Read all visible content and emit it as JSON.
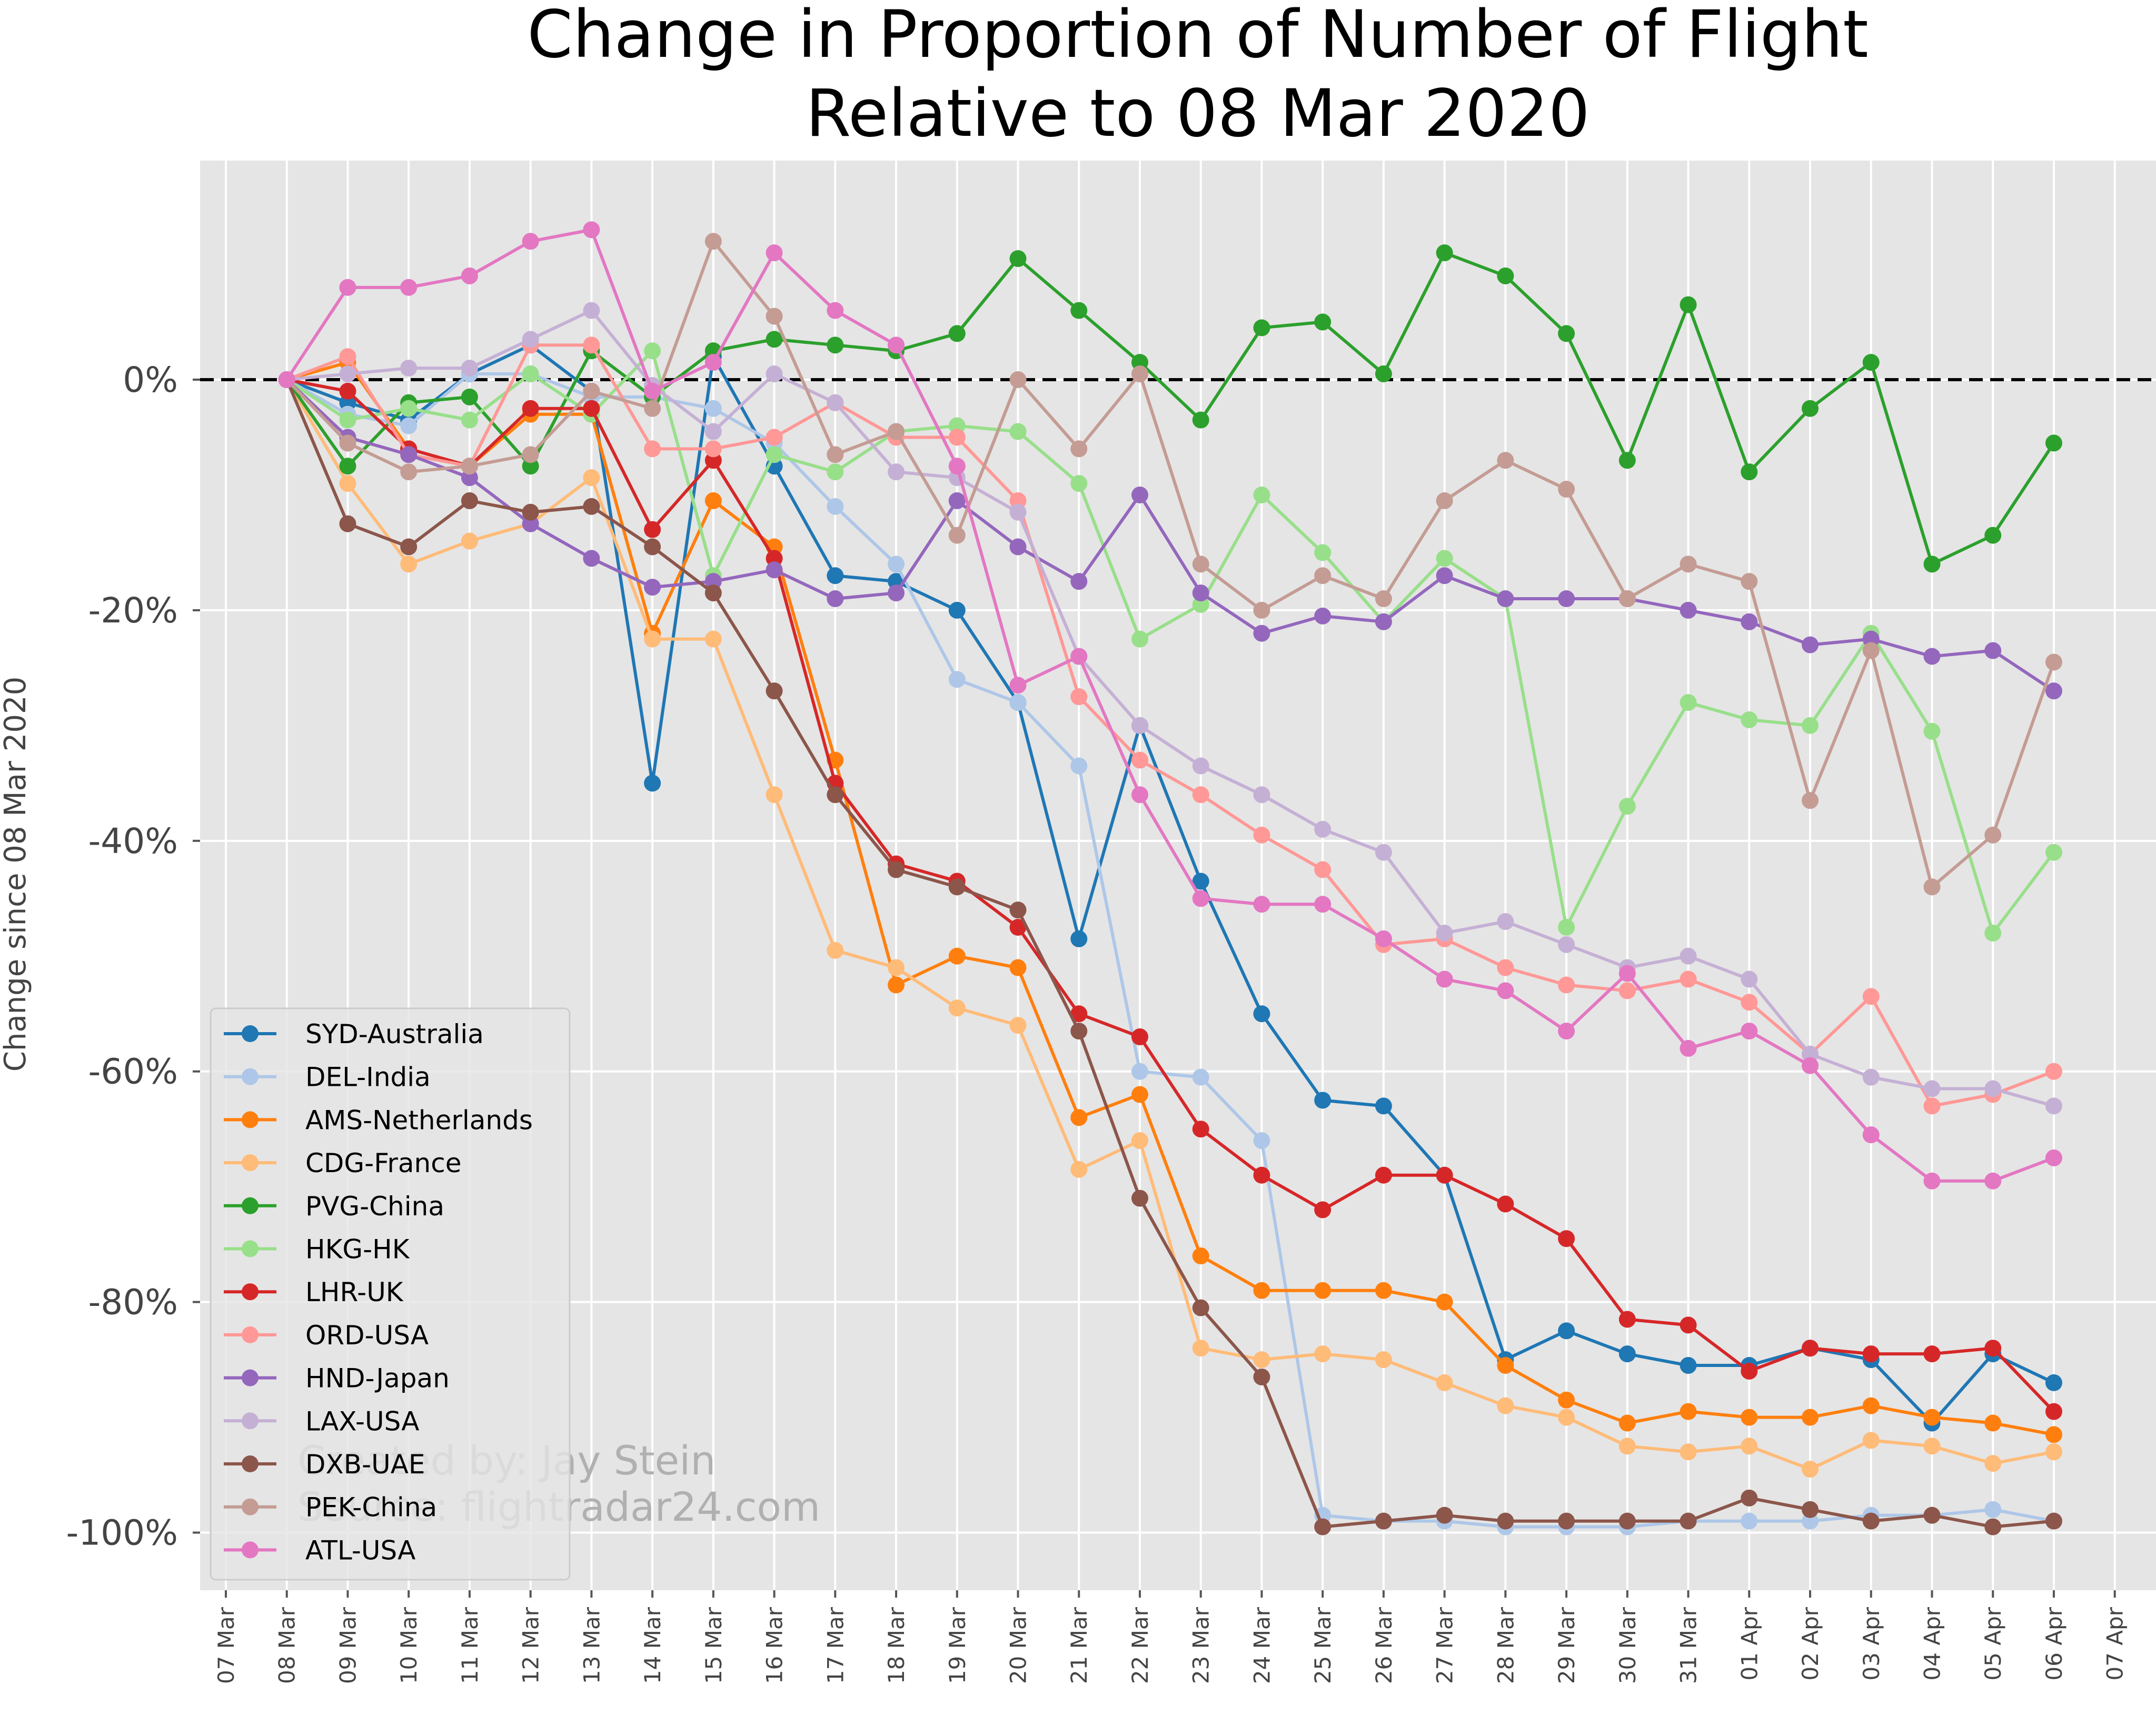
{
  "chart_data": {
    "type": "line",
    "title_line1": "Change in Proportion of Number of Flight",
    "title_line2": "Relative to 08 Mar 2020",
    "ylabel": "Change since 08 Mar 2020",
    "xlabel": "",
    "ylim": [
      -105,
      19
    ],
    "yticks": [
      {
        "value": 0,
        "label": "0%"
      },
      {
        "value": -20,
        "label": "-20%"
      },
      {
        "value": -40,
        "label": "-40%"
      },
      {
        "value": -60,
        "label": "-60%"
      },
      {
        "value": -80,
        "label": "-80%"
      },
      {
        "value": -100,
        "label": "-100%"
      }
    ],
    "x_tick_labels": [
      "07 Mar",
      "08 Mar",
      "09 Mar",
      "10 Mar",
      "11 Mar",
      "12 Mar",
      "13 Mar",
      "14 Mar",
      "15 Mar",
      "16 Mar",
      "17 Mar",
      "18 Mar",
      "19 Mar",
      "20 Mar",
      "21 Mar",
      "22 Mar",
      "23 Mar",
      "24 Mar",
      "25 Mar",
      "26 Mar",
      "27 Mar",
      "28 Mar",
      "29 Mar",
      "30 Mar",
      "31 Mar",
      "01 Apr",
      "02 Apr",
      "03 Apr",
      "04 Apr",
      "05 Apr",
      "06 Apr",
      "07 Apr"
    ],
    "x": [
      "08 Mar",
      "09 Mar",
      "10 Mar",
      "11 Mar",
      "12 Mar",
      "13 Mar",
      "14 Mar",
      "15 Mar",
      "16 Mar",
      "17 Mar",
      "18 Mar",
      "19 Mar",
      "20 Mar",
      "21 Mar",
      "22 Mar",
      "23 Mar",
      "24 Mar",
      "25 Mar",
      "26 Mar",
      "27 Mar",
      "28 Mar",
      "29 Mar",
      "30 Mar",
      "31 Mar",
      "01 Apr",
      "02 Apr",
      "03 Apr",
      "04 Apr",
      "05 Apr",
      "06 Apr"
    ],
    "grid": true,
    "reference_line": 0,
    "legend_position": "lower-left",
    "watermark_line1": "Created by: Jay Stein",
    "watermark_line2": "Source: flightradar24.com",
    "series": [
      {
        "name": "SYD-Australia",
        "color": "#1f77b4",
        "values": [
          0,
          -2,
          -3.5,
          0.5,
          3,
          -1,
          -35,
          2,
          -7.5,
          -17,
          -17.5,
          -20,
          -28,
          -48.5,
          -30,
          -43.5,
          -55,
          -62.5,
          -63,
          -69,
          -85,
          -82.5,
          -84.5,
          -85.5,
          -85.5,
          -84,
          -85,
          -90.5,
          -84.5,
          -87
        ]
      },
      {
        "name": "DEL-India",
        "color": "#aec7e8",
        "values": [
          0,
          -3,
          -4,
          0.5,
          0.5,
          -1.5,
          -1.5,
          -2.5,
          -5.5,
          -11,
          -16,
          -26,
          -28,
          -33.5,
          -60,
          -60.5,
          -66,
          -98.5,
          -99,
          -99,
          -99.5,
          -99.5,
          -99.5,
          -99,
          -99,
          -99,
          -98.5,
          -98.5,
          -98,
          -99
        ]
      },
      {
        "name": "AMS-Netherlands",
        "color": "#ff7f0e",
        "values": [
          0,
          1.5,
          -6,
          -7.5,
          -3,
          -3,
          -22,
          -10.5,
          -14.5,
          -33,
          -52.5,
          -50,
          -51,
          -64,
          -62,
          -76,
          -79,
          -79,
          -79,
          -80,
          -85.5,
          -88.5,
          -90.5,
          -89.5,
          -90,
          -90,
          -89,
          -90,
          -90.5,
          -91.5
        ]
      },
      {
        "name": "CDG-France",
        "color": "#ffbb78",
        "values": [
          0,
          -9,
          -16,
          -14,
          -12.5,
          -8.5,
          -22.5,
          -22.5,
          -36,
          -49.5,
          -51,
          -54.5,
          -56,
          -68.5,
          -66,
          -84,
          -85,
          -84.5,
          -85,
          -87,
          -89,
          -90,
          -92.5,
          -93,
          -92.5,
          -94.5,
          -92,
          -92.5,
          -94,
          -93
        ]
      },
      {
        "name": "PVG-China",
        "color": "#2ca02c",
        "values": [
          0,
          -7.5,
          -2,
          -1.5,
          -7.5,
          2.5,
          -1.5,
          2.5,
          3.5,
          3,
          2.5,
          4,
          10.5,
          6,
          1.5,
          -3.5,
          4.5,
          5,
          0.5,
          11,
          9,
          4,
          -7,
          6.5,
          -8,
          -2.5,
          1.5,
          -16,
          -13.5,
          -5.5
        ]
      },
      {
        "name": "HKG-HK",
        "color": "#98df8a",
        "values": [
          0,
          -3.5,
          -2.5,
          -3.5,
          0.5,
          -3,
          2.5,
          -17,
          -6.5,
          -8,
          -4.5,
          -4,
          -4.5,
          -9,
          -22.5,
          -19.5,
          -10,
          -15,
          -21,
          -15.5,
          -19,
          -47.5,
          -37,
          -28,
          -29.5,
          -30,
          -22,
          -30.5,
          -48,
          -41
        ]
      },
      {
        "name": "LHR-UK",
        "color": "#d62728",
        "values": [
          0,
          -1,
          -6,
          -7.5,
          -2.5,
          -2.5,
          -13,
          -7,
          -15.5,
          -35,
          -42,
          -43.5,
          -47.5,
          -55,
          -57,
          -65,
          -69,
          -72,
          -69,
          -69,
          -71.5,
          -74.5,
          -81.5,
          -82,
          -86,
          -84,
          -84.5,
          -84.5,
          -84,
          -89.5
        ]
      },
      {
        "name": "ORD-USA",
        "color": "#ff9896",
        "values": [
          0,
          2,
          -6.5,
          -7.5,
          3,
          3,
          -6,
          -6,
          -5,
          -2,
          -5,
          -5,
          -10.5,
          -27.5,
          -33,
          -36,
          -39.5,
          -42.5,
          -49,
          -48.5,
          -51,
          -52.5,
          -53,
          -52,
          -54,
          -58.5,
          -53.5,
          -63,
          -62,
          -60
        ]
      },
      {
        "name": "HND-Japan",
        "color": "#9467bd",
        "values": [
          0,
          -5,
          -6.5,
          -8.5,
          -12.5,
          -15.5,
          -18,
          -17.5,
          -16.5,
          -19,
          -18.5,
          -10.5,
          -14.5,
          -17.5,
          -10,
          -18.5,
          -22,
          -20.5,
          -21,
          -17,
          -19,
          -19,
          -19,
          -20,
          -21,
          -23,
          -22.5,
          -24,
          -23.5,
          -27
        ]
      },
      {
        "name": "LAX-USA",
        "color": "#c5b0d5",
        "values": [
          0,
          0.5,
          1,
          1,
          3.5,
          6,
          -0.5,
          -4.5,
          0.5,
          -2,
          -8,
          -8.5,
          -11.5,
          -24,
          -30,
          -33.5,
          -36,
          -39,
          -41,
          -48,
          -47,
          -49,
          -51,
          -50,
          -52,
          -58.5,
          -60.5,
          -61.5,
          -61.5,
          -63
        ]
      },
      {
        "name": "DXB-UAE",
        "color": "#8c564b",
        "values": [
          0,
          -12.5,
          -14.5,
          -10.5,
          -11.5,
          -11,
          -14.5,
          -18.5,
          -27,
          -36,
          -42.5,
          -44,
          -46,
          -56.5,
          -71,
          -80.5,
          -86.5,
          -99.5,
          -99,
          -98.5,
          -99,
          -99,
          -99,
          -99,
          -97,
          -98,
          -99,
          -98.5,
          -99.5,
          -99
        ]
      },
      {
        "name": "PEK-China",
        "color": "#c49c94",
        "values": [
          0,
          -5.5,
          -8,
          -7.5,
          -6.5,
          -1,
          -2.5,
          12,
          5.5,
          -6.5,
          -4.5,
          -13.5,
          0,
          -6,
          0.5,
          -16,
          -20,
          -17,
          -19,
          -10.5,
          -7,
          -9.5,
          -19,
          -16,
          -17.5,
          -36.5,
          -23.5,
          -44,
          -39.5,
          -24.5
        ]
      },
      {
        "name": "ATL-USA",
        "color": "#e377c2",
        "values": [
          0,
          8,
          8,
          9,
          12,
          13,
          -1,
          1.5,
          11,
          6,
          3,
          -7.5,
          -26.5,
          -24,
          -36,
          -45,
          -45.5,
          -45.5,
          -48.5,
          -52,
          -53,
          -56.5,
          -51.5,
          -58,
          -56.5,
          -59.5,
          -65.5,
          -69.5,
          -69.5,
          -67.5
        ]
      }
    ]
  }
}
